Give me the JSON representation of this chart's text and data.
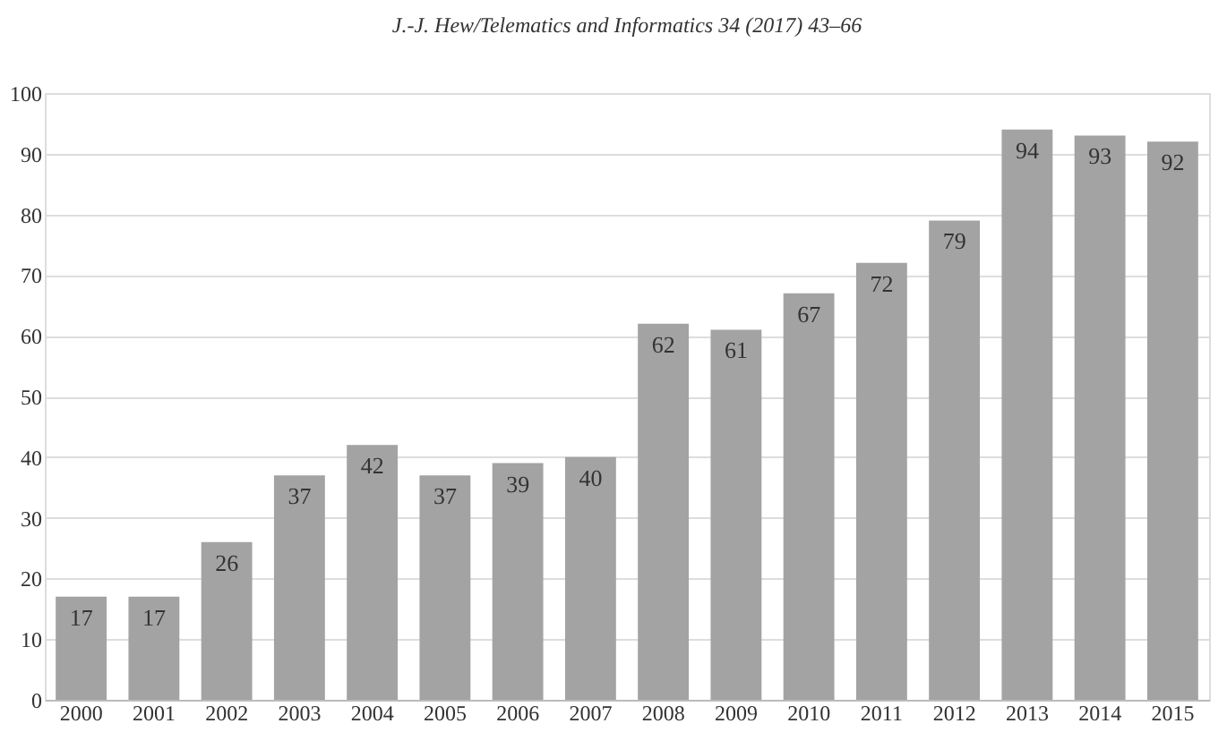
{
  "chart_data": {
    "type": "bar",
    "title": "J.-J. Hew/Telematics and Informatics 34 (2017) 43–66",
    "categories": [
      "2000",
      "2001",
      "2002",
      "2003",
      "2004",
      "2005",
      "2006",
      "2007",
      "2008",
      "2009",
      "2010",
      "2011",
      "2012",
      "2013",
      "2014",
      "2015"
    ],
    "values": [
      17,
      17,
      26,
      37,
      42,
      37,
      39,
      40,
      62,
      61,
      67,
      72,
      79,
      94,
      93,
      92
    ],
    "color": "#a3a3a3",
    "ylim": [
      0,
      100
    ],
    "yticks": [
      0,
      10,
      20,
      30,
      40,
      50,
      60,
      70,
      80,
      90,
      100
    ],
    "grid": "y",
    "data_labels": true
  }
}
